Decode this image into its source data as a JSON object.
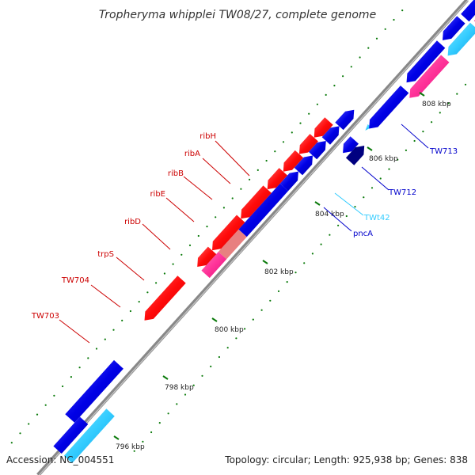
{
  "title": "Tropheryma whipplei TW08/27, complete genome",
  "footer": {
    "accession": "Accession: NC_004551",
    "summary": "Topology: circular; Length: 925,938 bp; Genes: 838"
  },
  "kbp_labels": [
    "796 kbp",
    "798 kbp",
    "800 kbp",
    "802 kbp",
    "804 kbp",
    "806 kbp",
    "808 kbp"
  ],
  "gene_labels": {
    "left": [
      "ribH",
      "ribA",
      "ribB",
      "ribE",
      "ribD",
      "trpS",
      "TW704",
      "TW703"
    ],
    "right": [
      "TW713",
      "TW712",
      "TWt42",
      "pncA"
    ]
  },
  "colors": {
    "forward_gene": "#0000e6",
    "reverse_gene": "#ff0a0a",
    "forward_cds_pink": "#ff3399",
    "trna": "#33ccff",
    "dark_gene": "#000080",
    "backbone": "#888888",
    "label_red": "#cc0000",
    "label_blue": "#0000cc",
    "label_cyan": "#33ccff",
    "tick_green": "#0a7a0a"
  }
}
